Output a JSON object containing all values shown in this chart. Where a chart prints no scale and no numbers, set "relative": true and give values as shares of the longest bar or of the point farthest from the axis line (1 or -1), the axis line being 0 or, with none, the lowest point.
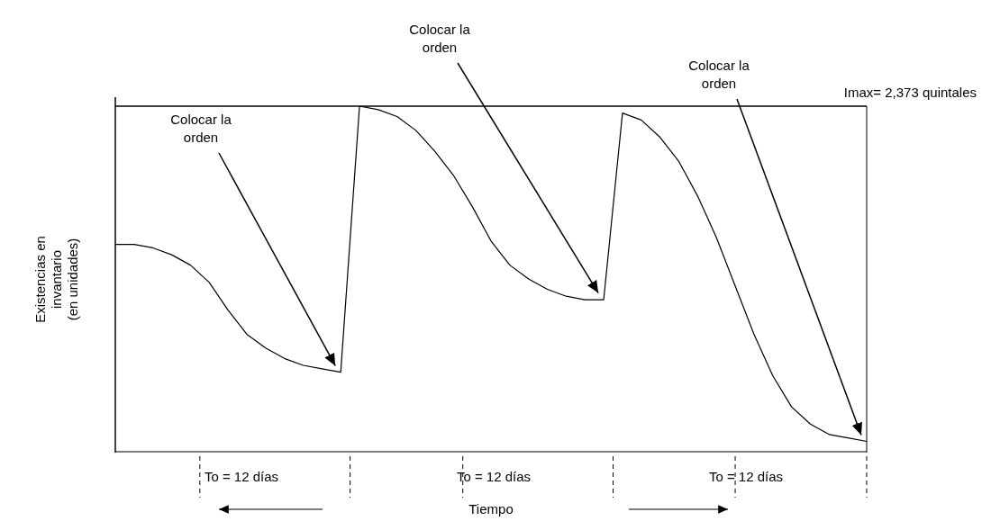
{
  "chart_data": {
    "type": "line",
    "relative": true,
    "xlabel": "Tiempo",
    "ylabel": "Existencias en invantario (en unidades)",
    "categories": [
      null,
      null,
      null,
      null,
      null,
      null,
      null,
      null,
      null,
      null,
      null,
      null,
      null,
      null,
      null,
      null,
      null,
      null,
      null,
      null,
      null,
      null,
      null,
      null,
      null,
      null,
      null,
      null,
      null,
      null,
      null,
      null,
      null,
      null,
      null,
      null,
      null,
      null,
      null,
      null,
      null
    ],
    "series": [
      {
        "color": "#000000",
        "values": [
          0.6,
          0.6,
          0.59,
          0.57,
          0.54,
          0.49,
          0.41,
          0.34,
          0.3,
          0.27,
          0.25,
          0.24,
          0.23,
          1.0,
          0.99,
          0.97,
          0.93,
          0.87,
          0.8,
          0.71,
          0.61,
          0.54,
          0.5,
          0.47,
          0.45,
          0.44,
          0.44,
          0.98,
          0.96,
          0.91,
          0.84,
          0.74,
          0.62,
          0.48,
          0.34,
          0.22,
          0.13,
          0.08,
          0.05,
          0.04,
          0.03
        ]
      }
    ],
    "ref_lines": [
      {
        "axis": "y",
        "value": 1,
        "color": "#000000"
      }
    ],
    "annotations": [
      "Colocar la orden",
      "Colocar la orden",
      "Colocar la orden",
      "To = 12 días",
      "To = 12 días",
      "To = 12 días",
      "Imax= 2,373 quintales"
    ],
    "marker": "none",
    "line_style": "solid"
  }
}
